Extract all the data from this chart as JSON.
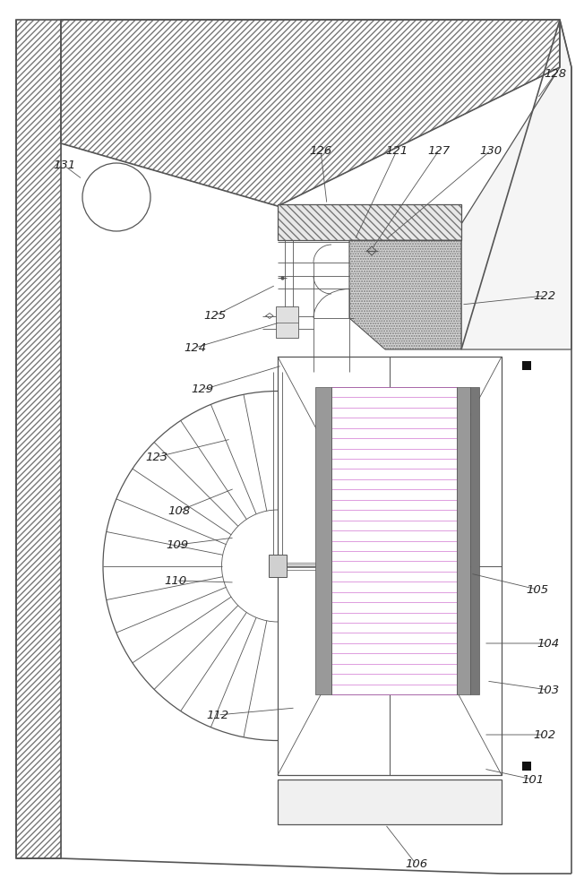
{
  "bg_color": "#ffffff",
  "lc": "#555555",
  "lc_dark": "#333333",
  "lc_thin": "#888888",
  "hatch_lc": "#777777",
  "stipple_fc": "#d8d8d8",
  "coil_line_color": "#cc66cc",
  "gray_panel": "#999999",
  "gray_panel2": "#777777",
  "black_marker": "#111111"
}
